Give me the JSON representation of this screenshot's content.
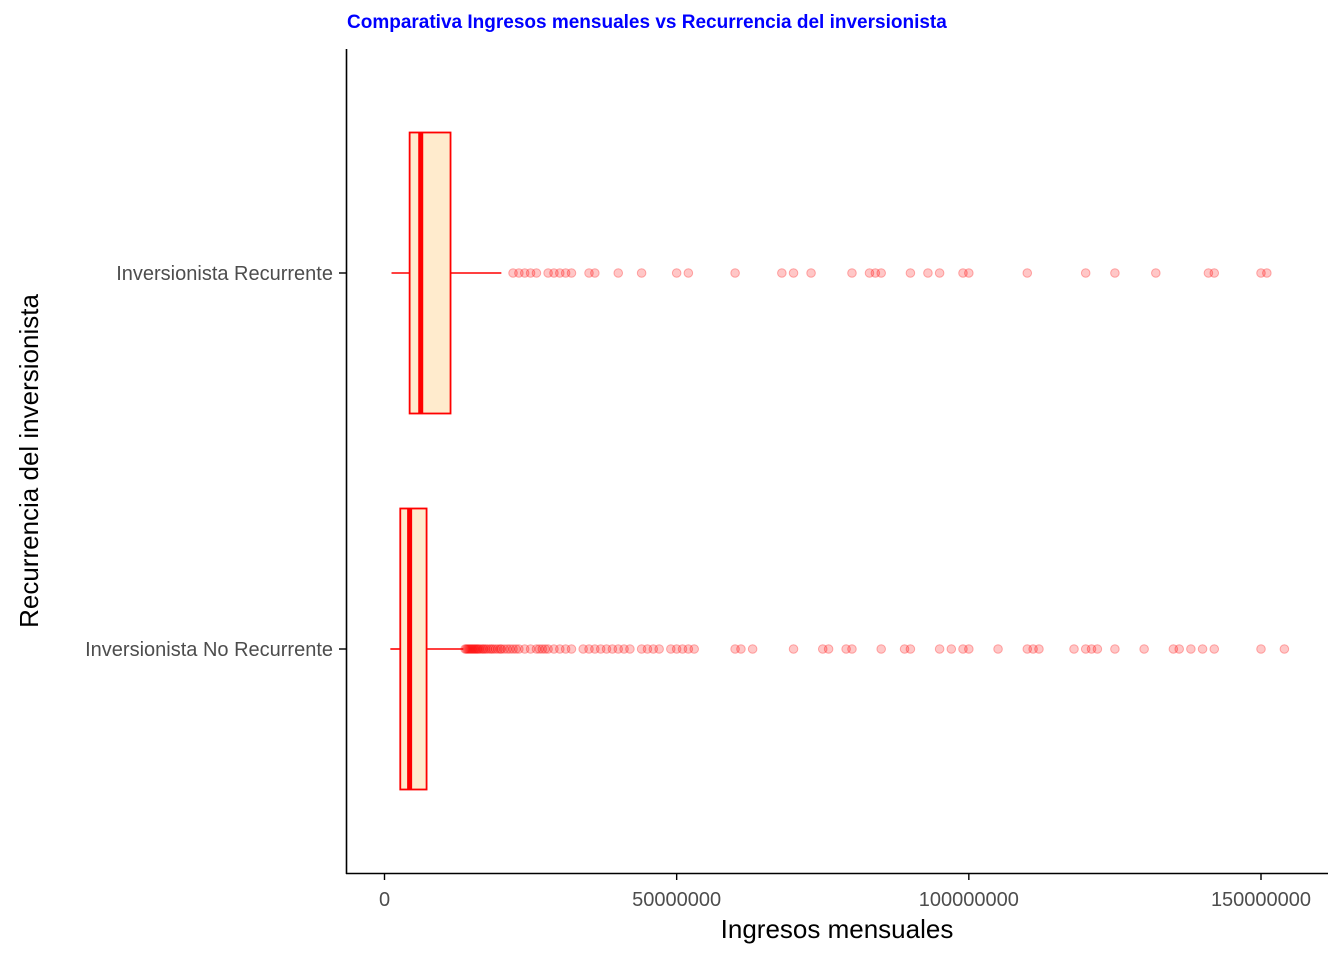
{
  "chart_data": {
    "type": "boxplot",
    "orientation": "horizontal",
    "title": "Comparativa Ingresos mensuales vs Recurrencia del inversionista",
    "xlabel": "Ingresos mensuales",
    "ylabel": "Recurrencia del inversionista",
    "xlim": [
      -6500000,
      162000000
    ],
    "x_ticks": [
      0,
      50000000,
      100000000,
      150000000
    ],
    "x_tick_labels": [
      "0",
      "50000000",
      "100000000",
      "150000000"
    ],
    "grid": false,
    "legend": "none",
    "colors": {
      "title": "#0000ff",
      "box_stroke": "#ff0000",
      "box_fill": "#ffebcd",
      "outlier": "#ff0000",
      "axis": "#000000"
    },
    "categories": [
      "Inversionista No Recurrente",
      "Inversionista Recurrente"
    ],
    "boxes": [
      {
        "category": "Inversionista No Recurrente",
        "whisker_low": 1000000,
        "q1": 2700000,
        "median": 4300000,
        "q3": 7200000,
        "whisker_high": 13500000,
        "outliers": [
          13800000,
          14000000,
          14200000,
          14400000,
          14600000,
          14800000,
          15000000,
          15200000,
          15400000,
          15600000,
          15800000,
          16000000,
          16200000,
          16500000,
          16800000,
          17000000,
          17300000,
          17600000,
          18000000,
          18300000,
          18600000,
          19000000,
          19400000,
          19800000,
          20000000,
          20500000,
          21000000,
          21500000,
          22000000,
          22500000,
          23000000,
          24000000,
          25000000,
          26000000,
          26500000,
          27000000,
          27500000,
          28000000,
          29000000,
          30000000,
          31000000,
          32000000,
          34000000,
          35000000,
          36000000,
          37000000,
          38000000,
          39000000,
          40000000,
          41000000,
          42000000,
          44000000,
          45000000,
          46000000,
          47000000,
          49000000,
          50000000,
          51000000,
          52000000,
          53000000,
          60000000,
          61000000,
          63000000,
          70000000,
          75000000,
          76000000,
          79000000,
          80000000,
          85000000,
          89000000,
          90000000,
          95000000,
          97000000,
          99000000,
          100000000,
          105000000,
          110000000,
          111000000,
          112000000,
          118000000,
          120000000,
          121000000,
          122000000,
          125000000,
          130000000,
          135000000,
          136000000,
          138000000,
          140000000,
          142000000,
          150000000,
          154000000
        ]
      },
      {
        "category": "Inversionista Recurrente",
        "whisker_low": 1200000,
        "q1": 4300000,
        "median": 6200000,
        "q3": 11300000,
        "whisker_high": 20000000,
        "outliers": [
          22000000,
          23000000,
          24000000,
          25000000,
          26000000,
          28000000,
          29000000,
          30000000,
          31000000,
          32000000,
          35000000,
          36000000,
          40000000,
          44000000,
          50000000,
          52000000,
          60000000,
          68000000,
          70000000,
          73000000,
          80000000,
          83000000,
          84000000,
          85000000,
          90000000,
          93000000,
          95000000,
          99000000,
          100000000,
          110000000,
          120000000,
          125000000,
          132000000,
          141000000,
          142000000,
          150000000,
          151000000
        ]
      }
    ]
  }
}
